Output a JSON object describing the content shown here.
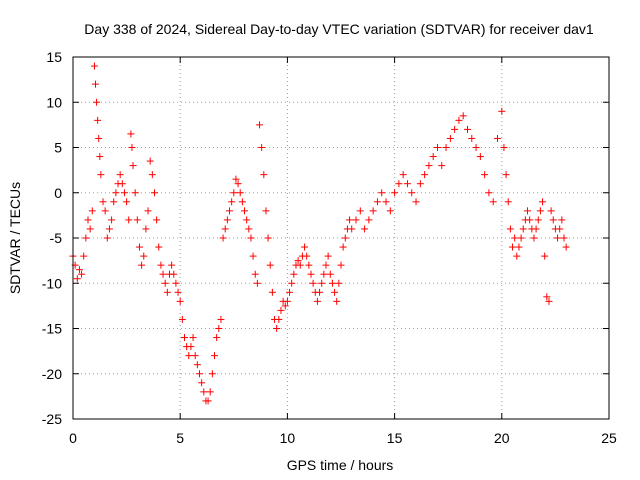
{
  "chart_data": {
    "type": "scatter",
    "title": "Day 338 of 2024, Sidereal Day-to-day VTEC variation (SDTVAR) for receiver dav1",
    "xlabel": "GPS time / hours",
    "ylabel": "SDTVAR / TECUs",
    "xlim": [
      0,
      25
    ],
    "ylim": [
      -25,
      15
    ],
    "xticks": [
      "0",
      "5",
      "10",
      "15",
      "20",
      "25"
    ],
    "yticks": [
      "15",
      "10",
      "5",
      "0",
      "-5",
      "-10",
      "-15",
      "-20",
      "-25"
    ],
    "grid": true,
    "marker": "+",
    "series_color": "#ff0000",
    "series": [
      {
        "name": "SDTVAR",
        "points": [
          [
            0.0,
            -7
          ],
          [
            0.1,
            -8
          ],
          [
            0.2,
            -9.5
          ],
          [
            0.3,
            -8.5
          ],
          [
            0.4,
            -9
          ],
          [
            0.5,
            -7
          ],
          [
            0.6,
            -5
          ],
          [
            0.7,
            -3
          ],
          [
            0.8,
            -4
          ],
          [
            0.9,
            -2
          ],
          [
            1.0,
            14
          ],
          [
            1.05,
            12
          ],
          [
            1.1,
            10
          ],
          [
            1.15,
            8
          ],
          [
            1.2,
            6
          ],
          [
            1.25,
            4
          ],
          [
            1.3,
            2
          ],
          [
            1.4,
            -1
          ],
          [
            1.5,
            -2
          ],
          [
            1.6,
            -5
          ],
          [
            1.7,
            -4
          ],
          [
            1.8,
            -3
          ],
          [
            1.9,
            -1
          ],
          [
            2.0,
            0
          ],
          [
            2.1,
            1
          ],
          [
            2.2,
            2
          ],
          [
            2.3,
            1
          ],
          [
            2.4,
            0
          ],
          [
            2.5,
            -1
          ],
          [
            2.6,
            -3
          ],
          [
            2.7,
            6.5
          ],
          [
            2.75,
            5
          ],
          [
            2.8,
            3
          ],
          [
            2.9,
            0
          ],
          [
            3.0,
            -3
          ],
          [
            3.1,
            -6
          ],
          [
            3.2,
            -8
          ],
          [
            3.3,
            -7
          ],
          [
            3.4,
            -4
          ],
          [
            3.5,
            -2
          ],
          [
            3.6,
            3.5
          ],
          [
            3.7,
            2
          ],
          [
            3.8,
            0
          ],
          [
            3.9,
            -3
          ],
          [
            4.0,
            -6
          ],
          [
            4.1,
            -8
          ],
          [
            4.2,
            -9
          ],
          [
            4.3,
            -10
          ],
          [
            4.4,
            -11
          ],
          [
            4.5,
            -9
          ],
          [
            4.6,
            -8
          ],
          [
            4.7,
            -9
          ],
          [
            4.8,
            -10
          ],
          [
            4.9,
            -11
          ],
          [
            5.0,
            -12
          ],
          [
            5.1,
            -14
          ],
          [
            5.2,
            -16
          ],
          [
            5.3,
            -17
          ],
          [
            5.4,
            -18
          ],
          [
            5.5,
            -17
          ],
          [
            5.6,
            -16
          ],
          [
            5.7,
            -18
          ],
          [
            5.8,
            -19
          ],
          [
            5.9,
            -20
          ],
          [
            6.0,
            -21
          ],
          [
            6.1,
            -22
          ],
          [
            6.2,
            -23
          ],
          [
            6.3,
            -23
          ],
          [
            6.4,
            -22
          ],
          [
            6.5,
            -20
          ],
          [
            6.6,
            -18
          ],
          [
            6.7,
            -16
          ],
          [
            6.8,
            -15
          ],
          [
            6.9,
            -14
          ],
          [
            7.0,
            -5
          ],
          [
            7.1,
            -4
          ],
          [
            7.2,
            -3
          ],
          [
            7.3,
            -2
          ],
          [
            7.4,
            -1
          ],
          [
            7.5,
            0
          ],
          [
            7.6,
            1.5
          ],
          [
            7.7,
            1
          ],
          [
            7.8,
            0
          ],
          [
            7.9,
            -1
          ],
          [
            8.0,
            -2
          ],
          [
            8.1,
            -3
          ],
          [
            8.2,
            -4
          ],
          [
            8.3,
            -5
          ],
          [
            8.4,
            -7
          ],
          [
            8.5,
            -9
          ],
          [
            8.6,
            -10
          ],
          [
            8.7,
            7.5
          ],
          [
            8.8,
            5
          ],
          [
            8.9,
            2
          ],
          [
            9.0,
            -2
          ],
          [
            9.1,
            -5
          ],
          [
            9.2,
            -8
          ],
          [
            9.3,
            -11
          ],
          [
            9.4,
            -14
          ],
          [
            9.5,
            -15
          ],
          [
            9.6,
            -14
          ],
          [
            9.7,
            -13
          ],
          [
            9.8,
            -12
          ],
          [
            9.9,
            -12.5
          ],
          [
            10.0,
            -12
          ],
          [
            10.1,
            -11
          ],
          [
            10.2,
            -10
          ],
          [
            10.3,
            -9
          ],
          [
            10.4,
            -8
          ],
          [
            10.5,
            -7.5
          ],
          [
            10.6,
            -8
          ],
          [
            10.7,
            -7
          ],
          [
            10.8,
            -6
          ],
          [
            10.9,
            -7
          ],
          [
            11.0,
            -8
          ],
          [
            11.1,
            -9
          ],
          [
            11.2,
            -10
          ],
          [
            11.3,
            -11
          ],
          [
            11.4,
            -12
          ],
          [
            11.5,
            -11
          ],
          [
            11.6,
            -10
          ],
          [
            11.7,
            -9
          ],
          [
            11.8,
            -8
          ],
          [
            11.9,
            -7
          ],
          [
            12.0,
            -9
          ],
          [
            12.1,
            -10
          ],
          [
            12.2,
            -11
          ],
          [
            12.3,
            -12
          ],
          [
            12.4,
            -10
          ],
          [
            12.5,
            -8
          ],
          [
            12.6,
            -6
          ],
          [
            12.7,
            -5
          ],
          [
            12.8,
            -4
          ],
          [
            12.9,
            -3
          ],
          [
            13.0,
            -4
          ],
          [
            13.2,
            -3
          ],
          [
            13.4,
            -2
          ],
          [
            13.6,
            -4
          ],
          [
            13.8,
            -3
          ],
          [
            14.0,
            -2
          ],
          [
            14.2,
            -1
          ],
          [
            14.4,
            0
          ],
          [
            14.6,
            -1
          ],
          [
            14.8,
            -2
          ],
          [
            15.0,
            0
          ],
          [
            15.2,
            1
          ],
          [
            15.4,
            2
          ],
          [
            15.6,
            1
          ],
          [
            15.8,
            0
          ],
          [
            16.0,
            -1
          ],
          [
            16.2,
            1
          ],
          [
            16.4,
            2
          ],
          [
            16.6,
            3
          ],
          [
            16.8,
            4
          ],
          [
            17.0,
            5
          ],
          [
            17.2,
            3
          ],
          [
            17.4,
            5
          ],
          [
            17.6,
            6
          ],
          [
            17.8,
            7
          ],
          [
            18.0,
            8
          ],
          [
            18.2,
            8.5
          ],
          [
            18.4,
            7
          ],
          [
            18.6,
            6
          ],
          [
            18.8,
            5
          ],
          [
            19.0,
            4
          ],
          [
            19.2,
            2
          ],
          [
            19.4,
            0
          ],
          [
            19.6,
            -1
          ],
          [
            19.8,
            6
          ],
          [
            20.0,
            9
          ],
          [
            20.1,
            5
          ],
          [
            20.2,
            2
          ],
          [
            20.3,
            -1
          ],
          [
            20.4,
            -4
          ],
          [
            20.5,
            -6
          ],
          [
            20.6,
            -5
          ],
          [
            20.7,
            -7
          ],
          [
            20.8,
            -6
          ],
          [
            20.9,
            -5
          ],
          [
            21.0,
            -4
          ],
          [
            21.1,
            -3
          ],
          [
            21.2,
            -2
          ],
          [
            21.3,
            -3
          ],
          [
            21.4,
            -4
          ],
          [
            21.5,
            -5
          ],
          [
            21.6,
            -4
          ],
          [
            21.7,
            -3
          ],
          [
            21.8,
            -2
          ],
          [
            21.9,
            -1
          ],
          [
            22.0,
            -7
          ],
          [
            22.1,
            -11.5
          ],
          [
            22.2,
            -12
          ],
          [
            22.3,
            -2
          ],
          [
            22.4,
            -3
          ],
          [
            22.5,
            -4
          ],
          [
            22.6,
            -5
          ],
          [
            22.7,
            -4
          ],
          [
            22.8,
            -3
          ],
          [
            22.9,
            -5
          ],
          [
            23.0,
            -6
          ]
        ]
      }
    ]
  }
}
